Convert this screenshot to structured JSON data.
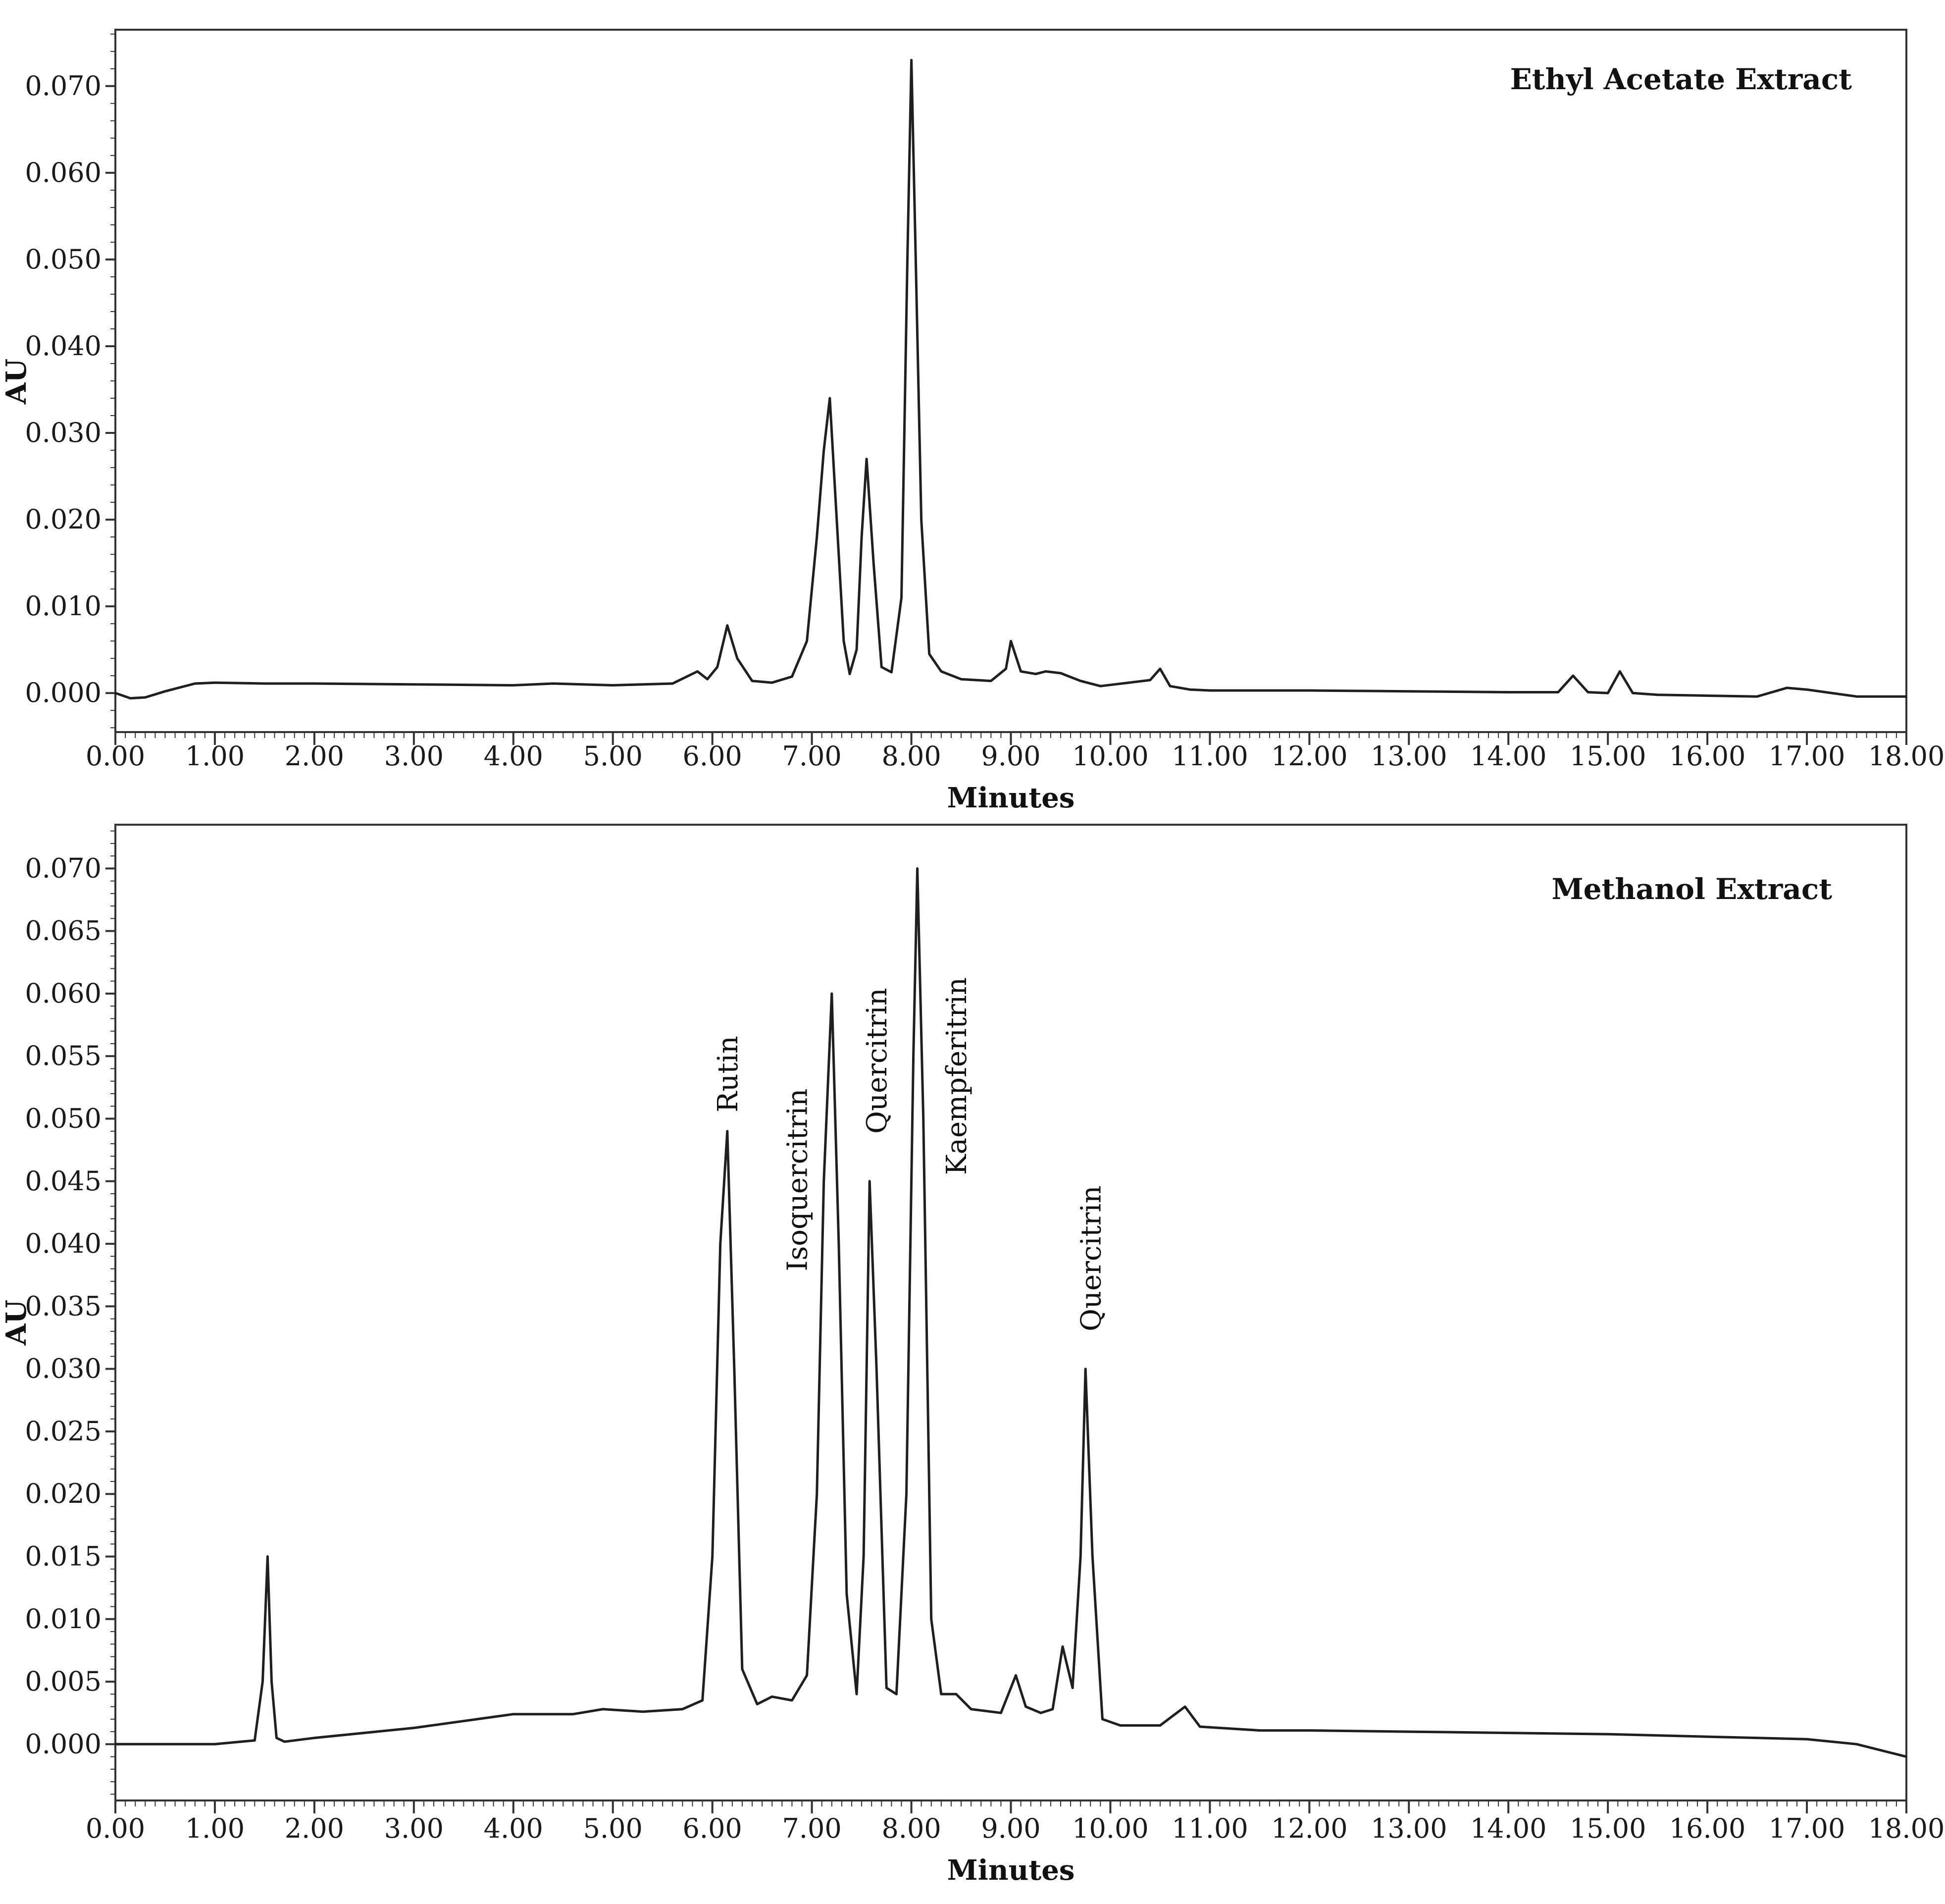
{
  "chart_data": [
    {
      "type": "line",
      "title": "Ethyl Acetate Extract",
      "xlabel": "Minutes",
      "ylabel": "AU",
      "xlim": [
        0,
        18
      ],
      "ylim": [
        -0.0045,
        0.0765
      ],
      "x_ticks": [
        "0.00",
        "1.00",
        "2.00",
        "3.00",
        "4.00",
        "5.00",
        "6.00",
        "7.00",
        "8.00",
        "9.00",
        "10.00",
        "11.00",
        "12.00",
        "13.00",
        "14.00",
        "15.00",
        "16.00",
        "17.00",
        "18.00"
      ],
      "y_ticks": [
        "0.000",
        "0.010",
        "0.020",
        "0.030",
        "0.040",
        "0.050",
        "0.060",
        "0.070"
      ],
      "annotations": [],
      "series": [
        {
          "x": [
            0,
            0.15,
            0.3,
            0.5,
            0.8,
            1.0,
            1.5,
            2.0,
            3.0,
            4.0,
            4.4,
            5.0,
            5.6,
            5.85,
            5.95,
            6.05,
            6.15,
            6.25,
            6.4,
            6.6,
            6.8,
            6.95,
            7.05,
            7.12,
            7.18,
            7.24,
            7.32,
            7.38,
            7.45,
            7.5,
            7.55,
            7.62,
            7.7,
            7.8,
            7.9,
            7.96,
            8.0,
            8.04,
            8.1,
            8.18,
            8.3,
            8.5,
            8.8,
            8.95,
            9.0,
            9.1,
            9.25,
            9.35,
            9.5,
            9.7,
            9.9,
            10.4,
            10.5,
            10.6,
            10.8,
            11.0,
            12.0,
            13.0,
            14.0,
            14.5,
            14.65,
            14.8,
            15.0,
            15.12,
            15.25,
            15.5,
            16.0,
            16.5,
            16.8,
            17.0,
            17.5,
            18.0
          ],
          "y": [
            0.0,
            -0.0006,
            -0.0005,
            0.0002,
            0.0011,
            0.0012,
            0.0011,
            0.0011,
            0.001,
            0.0009,
            0.0011,
            0.0009,
            0.0011,
            0.0025,
            0.0016,
            0.003,
            0.0078,
            0.004,
            0.0014,
            0.0012,
            0.0019,
            0.006,
            0.018,
            0.028,
            0.034,
            0.022,
            0.006,
            0.0022,
            0.005,
            0.018,
            0.027,
            0.015,
            0.003,
            0.0024,
            0.011,
            0.05,
            0.073,
            0.052,
            0.02,
            0.0045,
            0.0025,
            0.0016,
            0.0014,
            0.0028,
            0.006,
            0.0025,
            0.0022,
            0.0025,
            0.0023,
            0.0014,
            0.0008,
            0.0015,
            0.0028,
            0.0008,
            0.0004,
            0.0003,
            0.0003,
            0.0002,
            0.0001,
            0.0001,
            0.002,
            0.0001,
            0.0,
            0.0025,
            0.0,
            -0.0002,
            -0.0003,
            -0.0004,
            0.0006,
            0.0004,
            -0.0004,
            -0.0004
          ]
        }
      ]
    },
    {
      "type": "line",
      "title": "Methanol Extract",
      "xlabel": "Minutes",
      "ylabel": "AU",
      "xlim": [
        0,
        18
      ],
      "ylim": [
        -0.0045,
        0.0735
      ],
      "x_ticks": [
        "0.00",
        "1.00",
        "2.00",
        "3.00",
        "4.00",
        "5.00",
        "6.00",
        "7.00",
        "8.00",
        "9.00",
        "10.00",
        "11.00",
        "12.00",
        "13.00",
        "14.00",
        "15.00",
        "16.00",
        "17.00",
        "18.00"
      ],
      "y_ticks": [
        "0.000",
        "0.005",
        "0.010",
        "0.015",
        "0.020",
        "0.025",
        "0.030",
        "0.035",
        "0.040",
        "0.045",
        "0.050",
        "0.055",
        "0.060",
        "0.065",
        "0.070"
      ],
      "annotations": [
        {
          "text": "Rutin",
          "x": 6.15,
          "y": 0.0505
        },
        {
          "text": "Isoquercitrin",
          "x": 6.85,
          "y": 0.0378
        },
        {
          "text": "Quercitrin",
          "x": 7.65,
          "y": 0.0488
        },
        {
          "text": "Kaempferitrin",
          "x": 8.45,
          "y": 0.0455
        },
        {
          "text": "Quercitrin",
          "x": 9.8,
          "y": 0.033
        }
      ],
      "series": [
        {
          "x": [
            0,
            1.0,
            1.4,
            1.48,
            1.53,
            1.57,
            1.62,
            1.7,
            2.0,
            3.0,
            4.0,
            4.6,
            4.9,
            5.3,
            5.7,
            5.9,
            6.0,
            6.08,
            6.15,
            6.22,
            6.3,
            6.45,
            6.6,
            6.8,
            6.95,
            7.05,
            7.12,
            7.2,
            7.27,
            7.35,
            7.45,
            7.52,
            7.58,
            7.65,
            7.75,
            7.85,
            7.95,
            8.02,
            8.06,
            8.12,
            8.2,
            8.3,
            8.45,
            8.6,
            8.9,
            9.05,
            9.15,
            9.3,
            9.42,
            9.52,
            9.62,
            9.7,
            9.75,
            9.82,
            9.92,
            10.1,
            10.5,
            10.75,
            10.9,
            11.5,
            12.0,
            13.0,
            14.0,
            15.0,
            16.0,
            17.0,
            17.5,
            18.0
          ],
          "y": [
            0.0,
            0.0,
            0.0003,
            0.005,
            0.015,
            0.005,
            0.0005,
            0.0002,
            0.0005,
            0.0013,
            0.0024,
            0.0024,
            0.0028,
            0.0026,
            0.0028,
            0.0035,
            0.015,
            0.04,
            0.049,
            0.03,
            0.006,
            0.0032,
            0.0038,
            0.0035,
            0.0055,
            0.02,
            0.045,
            0.06,
            0.04,
            0.012,
            0.004,
            0.015,
            0.045,
            0.03,
            0.0045,
            0.004,
            0.02,
            0.055,
            0.07,
            0.05,
            0.01,
            0.004,
            0.004,
            0.0028,
            0.0025,
            0.0055,
            0.003,
            0.0025,
            0.0028,
            0.0078,
            0.0045,
            0.015,
            0.03,
            0.015,
            0.002,
            0.0015,
            0.0015,
            0.003,
            0.0014,
            0.0011,
            0.0011,
            0.001,
            0.0009,
            0.0008,
            0.0006,
            0.0004,
            0.0,
            -0.001
          ]
        }
      ]
    }
  ]
}
